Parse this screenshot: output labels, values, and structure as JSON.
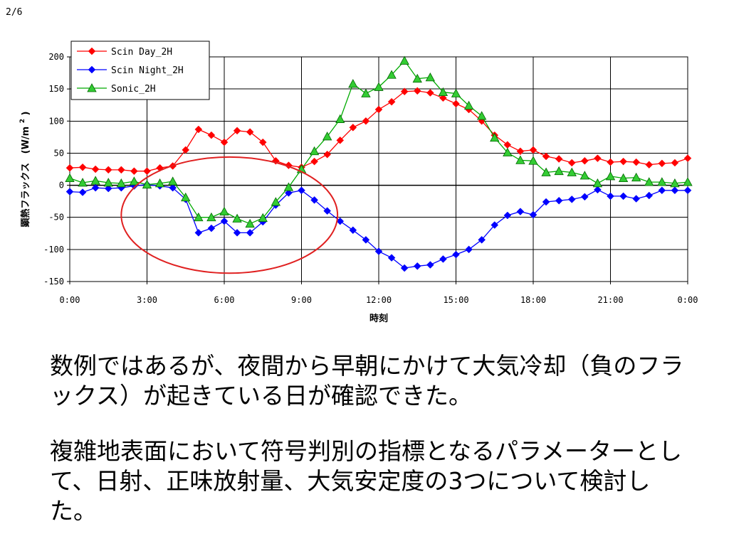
{
  "page_number": "2/6",
  "paragraphs": [
    "数例ではあるが、夜間から早朝にかけて大気冷却（負のフラックス）が起きている日が確認できた。",
    "複雑地表面において符号判別の指標となるパラメーターとして、日射、正味放射量、大気安定度の3つについて検討した。"
  ],
  "chart_data": {
    "type": "line",
    "xlabel": "時刻",
    "ylabel_main": "顕熱フラックス",
    "ylabel_unit": "(W/m",
    "ylabel_sup": "2",
    "ylabel_close": ")",
    "ylim": [
      -150,
      200
    ],
    "yticks": [
      -150,
      -100,
      -50,
      0,
      50,
      100,
      150,
      200
    ],
    "xlim": [
      0,
      24
    ],
    "xtick_values": [
      0,
      3,
      6,
      9,
      12,
      15,
      18,
      21,
      24
    ],
    "xtick_labels": [
      "0:00",
      "3:00",
      "6:00",
      "9:00",
      "12:00",
      "15:00",
      "18:00",
      "21:00",
      "0:00"
    ],
    "grid": true,
    "legend_position": "top-left",
    "x": [
      0,
      0.5,
      1,
      1.5,
      2,
      2.5,
      3,
      3.5,
      4,
      4.5,
      5,
      5.5,
      6,
      6.5,
      7,
      7.5,
      8,
      8.5,
      9,
      9.5,
      10,
      10.5,
      11,
      11.5,
      12,
      12.5,
      13,
      13.5,
      14,
      14.5,
      15,
      15.5,
      16,
      16.5,
      17,
      17.5,
      18,
      18.5,
      19,
      19.5,
      20,
      20.5,
      21,
      21.5,
      22,
      22.5,
      23,
      23.5,
      24
    ],
    "series": [
      {
        "name": "Scin Day_2H",
        "color": "#ff0000",
        "marker": "diamond",
        "values": [
          27,
          28,
          25,
          24,
          24,
          22,
          22,
          27,
          30,
          55,
          87,
          78,
          67,
          85,
          83,
          67,
          38,
          31,
          28,
          37,
          48,
          70,
          90,
          100,
          118,
          130,
          146,
          147,
          144,
          136,
          127,
          118,
          100,
          78,
          63,
          53,
          55,
          45,
          41,
          35,
          38,
          42,
          36,
          37,
          36,
          32,
          34,
          35,
          42
        ]
      },
      {
        "name": "Scin Night_2H",
        "color": "#0000ff",
        "marker": "diamond",
        "values": [
          -10,
          -11,
          -4,
          -5,
          -4,
          -1,
          1,
          -1,
          -4,
          -22,
          -74,
          -67,
          -56,
          -74,
          -74,
          -57,
          -31,
          -12,
          -8,
          -23,
          -40,
          -56,
          -70,
          -85,
          -103,
          -113,
          -129,
          -126,
          -124,
          -115,
          -108,
          -100,
          -85,
          -62,
          -47,
          -41,
          -46,
          -26,
          -24,
          -22,
          -18,
          -7,
          -17,
          -17,
          -21,
          -16,
          -8,
          -8,
          -8
        ]
      },
      {
        "name": "Sonic_2H",
        "color": "#00aa00",
        "marker": "triangle",
        "values": [
          11,
          4,
          7,
          4,
          3,
          6,
          1,
          3,
          6,
          -19,
          -50,
          -50,
          -41,
          -52,
          -60,
          -51,
          -26,
          -3,
          25,
          53,
          76,
          103,
          158,
          143,
          153,
          172,
          194,
          166,
          168,
          145,
          143,
          124,
          108,
          74,
          51,
          39,
          38,
          20,
          22,
          20,
          15,
          3,
          14,
          11,
          12,
          5,
          5,
          3,
          5
        ]
      }
    ],
    "annotation": {
      "shape": "ellipse",
      "color": "#e02020",
      "x_range": [
        2,
        10.4
      ],
      "y_range": [
        -137,
        44
      ]
    }
  }
}
